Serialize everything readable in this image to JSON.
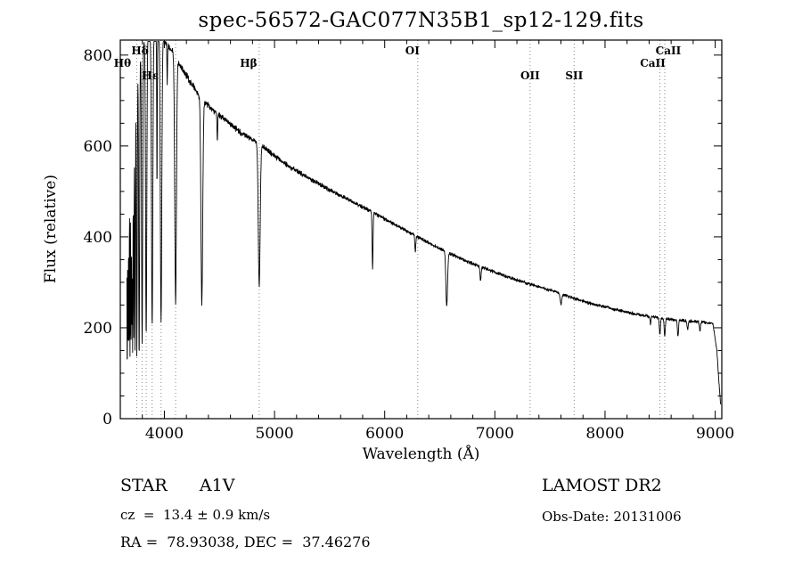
{
  "title": "spec-56572-GAC077N35B1_sp12-129.fits",
  "colors": {
    "background": "#ffffff",
    "spectrum_line": "#000000",
    "frame": "#000000",
    "marker_line": "#8a8a8a"
  },
  "chart_data": {
    "type": "line",
    "title": "spec-56572-GAC077N35B1_sp12-129.fits",
    "xlabel": "Wavelength (Å)",
    "ylabel": "Flux (relative)",
    "xlim": [
      3600,
      9060
    ],
    "ylim": [
      0,
      833
    ],
    "grid": "off",
    "x_ticks": [
      4000,
      5000,
      6000,
      7000,
      8000,
      9000
    ],
    "y_ticks": [
      0,
      200,
      400,
      600,
      800
    ],
    "x_minor_step": 200,
    "y_minor_step": 50,
    "continuum": [
      [
        3660,
        420
      ],
      [
        3680,
        560
      ],
      [
        3705,
        660
      ],
      [
        3730,
        720
      ],
      [
        3760,
        780
      ],
      [
        3800,
        820
      ],
      [
        3850,
        840
      ],
      [
        3900,
        848
      ],
      [
        3950,
        842
      ],
      [
        4000,
        832
      ],
      [
        4060,
        812
      ],
      [
        4150,
        775
      ],
      [
        4250,
        735
      ],
      [
        4350,
        700
      ],
      [
        4450,
        678
      ],
      [
        4550,
        658
      ],
      [
        4700,
        628
      ],
      [
        4861,
        606
      ],
      [
        5000,
        578
      ],
      [
        5150,
        552
      ],
      [
        5300,
        531
      ],
      [
        5450,
        510
      ],
      [
        5600,
        491
      ],
      [
        5750,
        472
      ],
      [
        5900,
        453
      ],
      [
        6050,
        433
      ],
      [
        6200,
        413
      ],
      [
        6350,
        393
      ],
      [
        6500,
        374
      ],
      [
        6650,
        357
      ],
      [
        6800,
        341
      ],
      [
        6950,
        327
      ],
      [
        7100,
        313
      ],
      [
        7250,
        301
      ],
      [
        7400,
        290
      ],
      [
        7550,
        279
      ],
      [
        7700,
        266
      ],
      [
        7850,
        255
      ],
      [
        8000,
        246
      ],
      [
        8150,
        237
      ],
      [
        8300,
        229
      ],
      [
        8450,
        223
      ],
      [
        8600,
        218
      ],
      [
        8750,
        215
      ],
      [
        8900,
        212
      ],
      [
        8980,
        209
      ],
      [
        9015,
        150
      ],
      [
        9040,
        60
      ],
      [
        9050,
        30
      ]
    ],
    "absorption_lines": [
      {
        "wl": 3663,
        "depth": 0.8,
        "sigma": 2.0
      },
      {
        "wl": 3671,
        "depth": 0.72,
        "sigma": 2.2
      },
      {
        "wl": 3679,
        "depth": 0.74,
        "sigma": 2.2
      },
      {
        "wl": 3688,
        "depth": 0.75,
        "sigma": 2.4
      },
      {
        "wl": 3697,
        "depth": 0.77,
        "sigma": 2.6
      },
      {
        "wl": 3705,
        "depth": 0.7,
        "sigma": 2.6
      },
      {
        "wl": 3712,
        "depth": 0.78,
        "sigma": 2.8
      },
      {
        "wl": 3722,
        "depth": 0.74,
        "sigma": 3.0
      },
      {
        "wl": 3734,
        "depth": 0.8,
        "sigma": 3.2
      },
      {
        "wl": 3750,
        "depth": 0.82,
        "sigma": 3.8
      },
      {
        "wl": 3771,
        "depth": 0.83,
        "sigma": 4.2
      },
      {
        "wl": 3798,
        "depth": 0.8,
        "sigma": 4.8
      },
      {
        "wl": 3835,
        "depth": 0.78,
        "sigma": 5.4
      },
      {
        "wl": 3889,
        "depth": 0.76,
        "sigma": 6.0
      },
      {
        "wl": 3933,
        "depth": 0.4,
        "sigma": 2.4
      },
      {
        "wl": 3970,
        "depth": 0.74,
        "sigma": 6.5
      },
      {
        "wl": 4026,
        "depth": 0.1,
        "sigma": 3.0
      },
      {
        "wl": 4102,
        "depth": 0.68,
        "sigma": 7.5
      },
      {
        "wl": 4340,
        "depth": 0.64,
        "sigma": 8.0
      },
      {
        "wl": 4481,
        "depth": 0.09,
        "sigma": 3.0
      },
      {
        "wl": 4861,
        "depth": 0.52,
        "sigma": 8.5
      },
      {
        "wl": 5890,
        "depth": 0.28,
        "sigma": 4.0
      },
      {
        "wl": 6278,
        "depth": 0.09,
        "sigma": 4.0
      },
      {
        "wl": 6563,
        "depth": 0.33,
        "sigma": 7.5
      },
      {
        "wl": 6870,
        "depth": 0.09,
        "sigma": 5.0
      },
      {
        "wl": 7600,
        "depth": 0.08,
        "sigma": 7.0
      },
      {
        "wl": 8413,
        "depth": 0.07,
        "sigma": 4.0
      },
      {
        "wl": 8498,
        "depth": 0.16,
        "sigma": 5.0
      },
      {
        "wl": 8542,
        "depth": 0.18,
        "sigma": 5.0
      },
      {
        "wl": 8662,
        "depth": 0.17,
        "sigma": 5.0
      },
      {
        "wl": 8750,
        "depth": 0.09,
        "sigma": 5.0
      },
      {
        "wl": 8862,
        "depth": 0.09,
        "sigma": 5.0
      }
    ],
    "marked_lines": [
      {
        "label": "",
        "wl": 3750,
        "row": 0,
        "dx": 0
      },
      {
        "label": "Hθ",
        "wl": 3798,
        "row": 2,
        "dx": -22
      },
      {
        "label": "",
        "wl": 3835,
        "row": 0,
        "dx": 0
      },
      {
        "label": "",
        "wl": 3889,
        "row": 0,
        "dx": 0
      },
      {
        "label": "Hε",
        "wl": 3970,
        "row": 3,
        "dx": -12
      },
      {
        "label": "Hδ",
        "wl": 4102,
        "row": 1,
        "dx": -40
      },
      {
        "label": "Hβ",
        "wl": 4861,
        "row": 2,
        "dx": -12
      },
      {
        "label": "OI",
        "wl": 6300,
        "row": 1,
        "dx": -6
      },
      {
        "label": "OII",
        "wl": 7320,
        "row": 3,
        "dx": 0
      },
      {
        "label": "SII",
        "wl": 7720,
        "row": 3,
        "dx": 0
      },
      {
        "label": "CaII",
        "wl": 8498,
        "row": 2,
        "dx": -8
      },
      {
        "label": "CaII",
        "wl": 8542,
        "row": 1,
        "dx": 4
      }
    ],
    "noise": {
      "base": 4,
      "blue_extra": 9,
      "scale": 1000,
      "seed": 7
    },
    "sample_step": 2,
    "flux_clip": [
      3,
      830
    ]
  },
  "annotations": {
    "class_line": "STAR      A1V",
    "survey": "LAMOST DR2",
    "cz_line": "cz  =  13.4 ± 0.9 km/s",
    "obs_date": "Obs-Date: 20131006",
    "coords": "RA =  78.93038, DEC =  37.46276"
  }
}
